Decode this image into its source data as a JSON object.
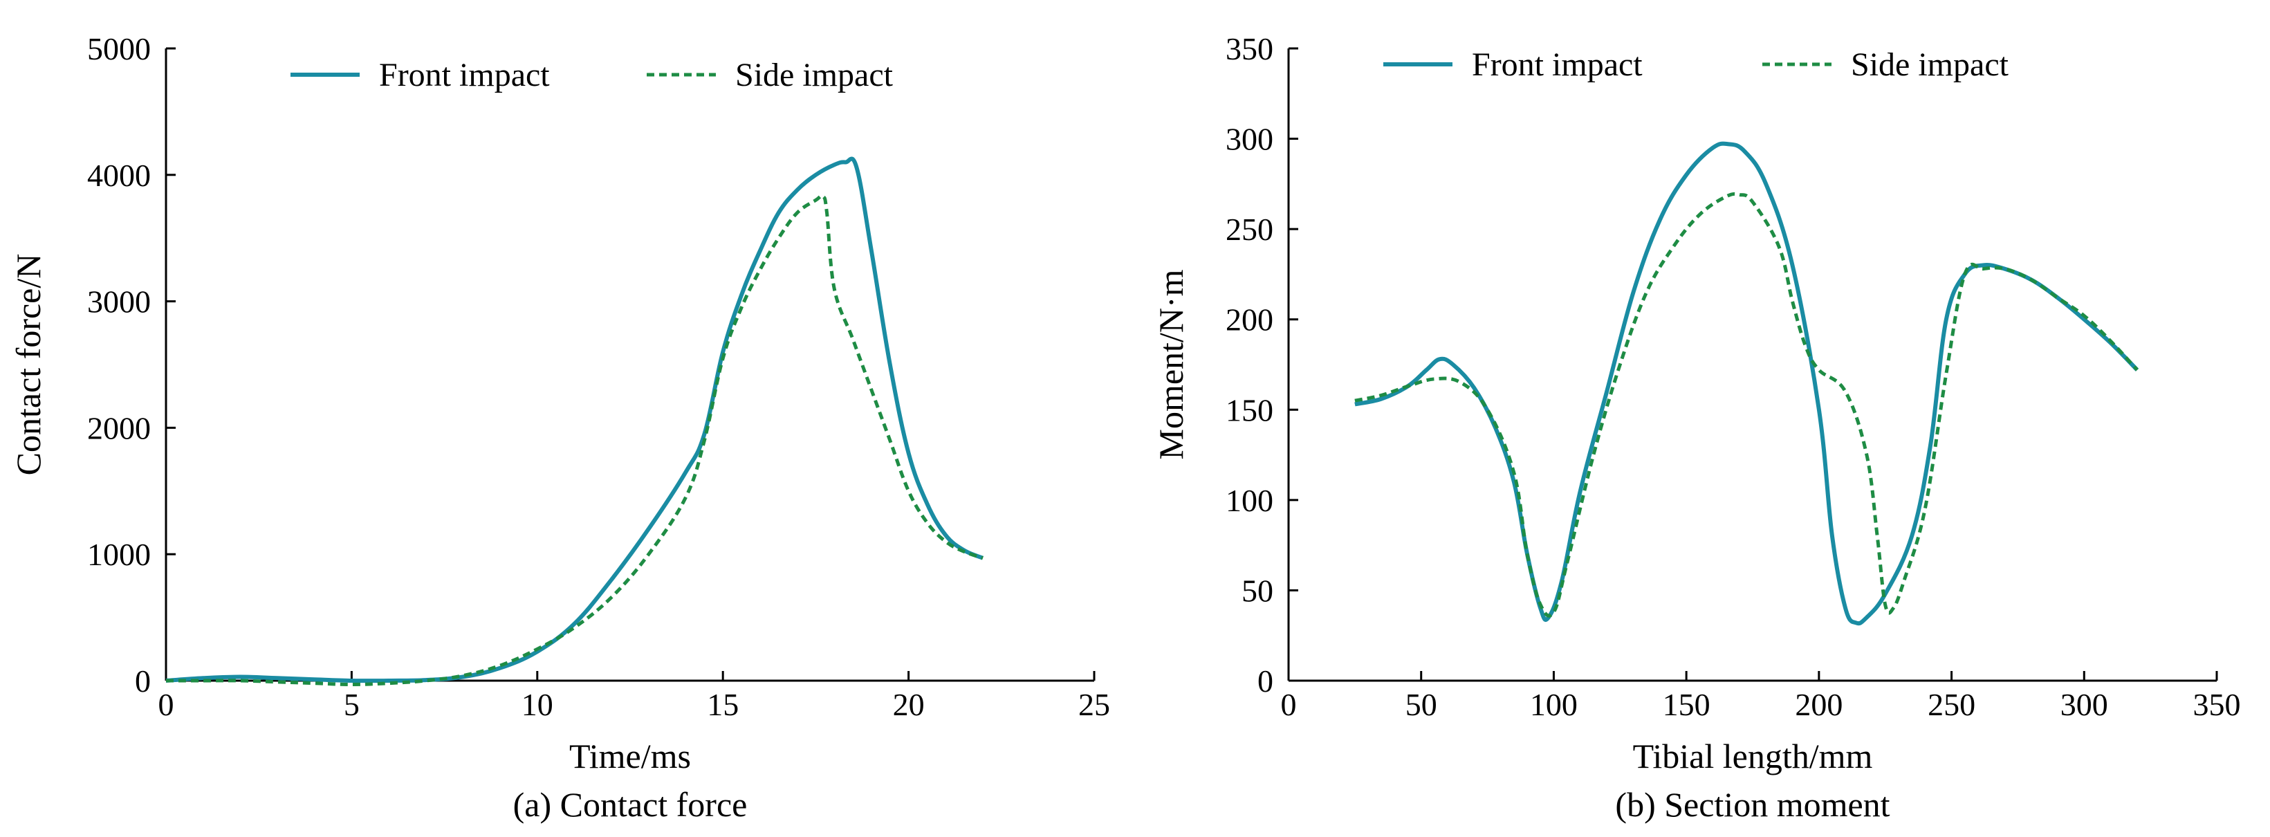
{
  "colors": {
    "front": "#1a8ca3",
    "side": "#1e8c44",
    "axis": "#000000",
    "background": "#ffffff"
  },
  "chart_data": [
    {
      "type": "line",
      "caption": "(a) Contact force",
      "xlabel": "Time/ms",
      "ylabel": "Contact force/N",
      "xlim": [
        0,
        25
      ],
      "ylim": [
        0,
        5000
      ],
      "xticks": [
        0,
        5,
        10,
        15,
        20,
        25
      ],
      "yticks": [
        0,
        1000,
        2000,
        3000,
        4000,
        5000
      ],
      "legend_position": "top",
      "series": [
        {
          "name": "Front impact",
          "style": "solid",
          "x": [
            0,
            1,
            2,
            3,
            4,
            5,
            6,
            7,
            8,
            9,
            10,
            11,
            12,
            13,
            14,
            14.5,
            15,
            15.5,
            16,
            16.5,
            17,
            17.5,
            18,
            18.3,
            18.6,
            19,
            19.5,
            20,
            20.5,
            21,
            21.5,
            22
          ],
          "y": [
            0,
            20,
            30,
            20,
            10,
            0,
            0,
            5,
            30,
            100,
            230,
            450,
            800,
            1200,
            1650,
            1950,
            2600,
            3050,
            3400,
            3700,
            3880,
            4000,
            4080,
            4100,
            4060,
            3400,
            2500,
            1800,
            1400,
            1150,
            1030,
            970
          ]
        },
        {
          "name": "Side impact",
          "style": "dashed",
          "x": [
            0,
            1,
            2,
            3,
            4,
            5,
            6,
            7,
            8,
            9,
            10,
            11,
            12,
            13,
            14,
            14.5,
            15,
            15.5,
            16,
            16.5,
            17,
            17.5,
            17.7,
            17.8,
            18,
            18.5,
            19,
            19.5,
            20,
            20.5,
            21,
            21.5,
            22
          ],
          "y": [
            0,
            0,
            0,
            -10,
            -20,
            -30,
            -20,
            0,
            40,
            120,
            250,
            420,
            660,
            1000,
            1450,
            1900,
            2550,
            2950,
            3250,
            3500,
            3700,
            3800,
            3830,
            3700,
            3100,
            2700,
            2300,
            1900,
            1500,
            1250,
            1100,
            1020,
            970
          ]
        }
      ]
    },
    {
      "type": "line",
      "caption": "(b) Section moment",
      "xlabel": "Tibial length/mm",
      "ylabel": "Moment/N·m",
      "xlim": [
        0,
        350
      ],
      "ylim": [
        0,
        350
      ],
      "xticks": [
        0,
        50,
        100,
        150,
        200,
        250,
        300,
        350
      ],
      "yticks": [
        0,
        50,
        100,
        150,
        200,
        250,
        300,
        350
      ],
      "legend_position": "top",
      "series": [
        {
          "name": "Front impact",
          "style": "solid",
          "x": [
            25,
            35,
            45,
            52,
            57,
            62,
            70,
            78,
            85,
            90,
            95,
            98,
            103,
            110,
            120,
            130,
            140,
            150,
            160,
            166,
            172,
            180,
            190,
            200,
            205,
            210,
            214,
            218,
            225,
            235,
            242,
            248,
            255,
            262,
            270,
            280,
            290,
            300,
            310,
            320
          ],
          "y": [
            153,
            156,
            163,
            172,
            178,
            175,
            162,
            140,
            110,
            70,
            40,
            35,
            55,
            105,
            160,
            215,
            255,
            280,
            295,
            297,
            293,
            275,
            230,
            150,
            80,
            40,
            32,
            35,
            48,
            80,
            130,
            200,
            225,
            230,
            228,
            222,
            212,
            200,
            187,
            172
          ]
        },
        {
          "name": "Side impact",
          "style": "dashed",
          "x": [
            25,
            35,
            45,
            55,
            65,
            75,
            85,
            90,
            95,
            100,
            105,
            115,
            125,
            135,
            145,
            155,
            165,
            170,
            175,
            185,
            190,
            195,
            200,
            210,
            218,
            222,
            225,
            228,
            232,
            240,
            248,
            255,
            262,
            270,
            280,
            290,
            300,
            310,
            320
          ],
          "y": [
            155,
            158,
            163,
            167,
            165,
            150,
            115,
            70,
            42,
            38,
            65,
            125,
            175,
            215,
            240,
            258,
            268,
            269,
            265,
            240,
            210,
            185,
            172,
            160,
            125,
            80,
            42,
            40,
            55,
            95,
            170,
            225,
            228,
            228,
            222,
            212,
            202,
            188,
            172
          ]
        }
      ]
    }
  ]
}
